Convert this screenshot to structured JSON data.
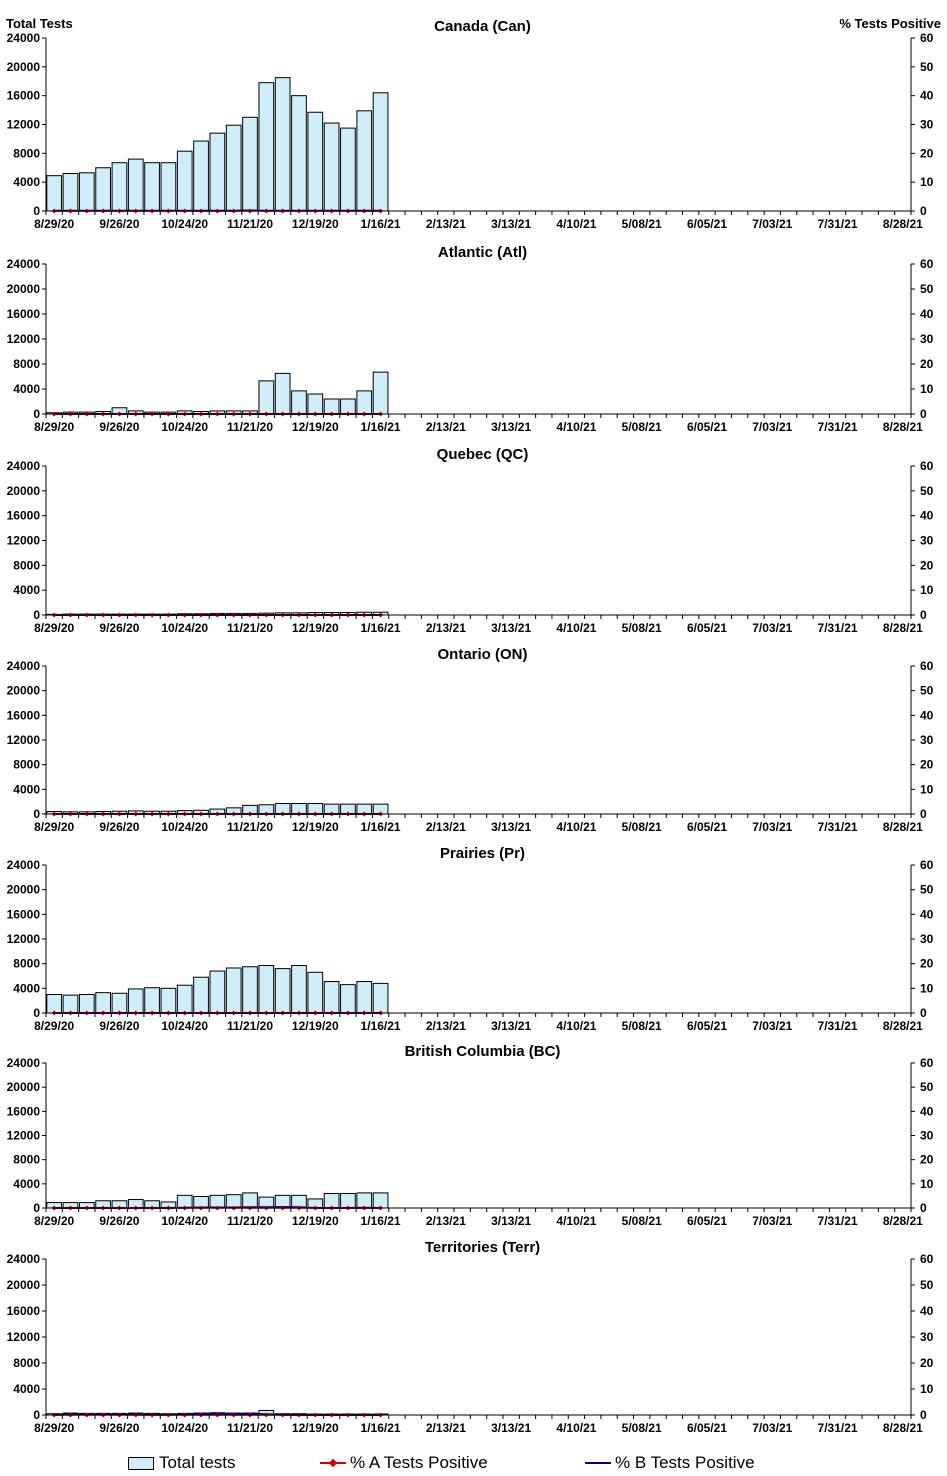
{
  "left_axis_title": "Total Tests",
  "right_axis_title": "% Tests Positive",
  "colors": {
    "bar_fill": "#cfeefa",
    "bar_stroke": "#000000",
    "pct_a": "#cc0000",
    "pct_b": "#00008b"
  },
  "legend": {
    "total": "Total tests",
    "pct_a": "% A Tests Positive",
    "pct_b": "% B Tests Positive"
  },
  "chart_data": [
    {
      "type": "bar",
      "title": "Canada (Can)",
      "ylim": [
        0,
        24000
      ],
      "y2lim": [
        0,
        60
      ],
      "yticks": [
        "24000",
        "20000",
        "16000",
        "12000",
        "8000",
        "4000",
        "0"
      ],
      "y2ticks": [
        "60",
        "50",
        "40",
        "30",
        "20",
        "10",
        "0"
      ],
      "xtick_labels": [
        "8/29/20",
        "9/26/20",
        "10/24/20",
        "11/21/20",
        "12/19/20",
        "1/16/21",
        "2/13/21",
        "3/13/21",
        "4/10/21",
        "5/08/21",
        "6/05/21",
        "7/03/21",
        "7/31/21",
        "8/28/21"
      ],
      "series": [
        {
          "name": "Total tests",
          "values": [
            4900,
            5200,
            5300,
            6000,
            6700,
            7200,
            6700,
            6700,
            8300,
            9700,
            10800,
            11900,
            13000,
            17800,
            18500,
            16000,
            13700,
            12200,
            11500,
            13900,
            16400
          ]
        },
        {
          "name": "% A Tests Positive",
          "values": [
            0,
            0,
            0,
            0,
            0,
            0,
            0,
            0,
            0,
            0,
            0,
            0,
            0,
            0,
            0,
            0,
            0,
            0,
            0,
            0,
            0
          ]
        },
        {
          "name": "% B Tests Positive",
          "values": [
            0.1,
            0.1,
            0.1,
            0.1,
            0.1,
            0.1,
            0.1,
            0.1,
            0.1,
            0.1,
            0.1,
            0.1,
            0.2,
            0.1,
            0.1,
            0.1,
            0.1,
            0.1,
            0.1,
            0.1,
            0.1
          ]
        }
      ]
    },
    {
      "type": "bar",
      "title": "Atlantic (Atl)",
      "ylim": [
        0,
        24000
      ],
      "y2lim": [
        0,
        60
      ],
      "yticks": [
        "24000",
        "20000",
        "16000",
        "12000",
        "8000",
        "4000",
        "0"
      ],
      "y2ticks": [
        "60",
        "50",
        "40",
        "30",
        "20",
        "10",
        "0"
      ],
      "xtick_labels": [
        "8/29/20",
        "9/26/20",
        "10/24/20",
        "11/21/20",
        "12/19/20",
        "1/16/21",
        "2/13/21",
        "3/13/21",
        "4/10/21",
        "5/08/21",
        "6/05/21",
        "7/03/21",
        "7/31/21",
        "8/28/21"
      ],
      "series": [
        {
          "name": "Total tests",
          "values": [
            200,
            300,
            300,
            400,
            1000,
            500,
            300,
            300,
            500,
            400,
            500,
            500,
            500,
            5300,
            6500,
            3700,
            3200,
            2400,
            2400,
            3700,
            6700
          ]
        },
        {
          "name": "% A Tests Positive",
          "values": [
            0,
            0,
            0,
            0,
            0,
            0,
            0,
            0,
            0,
            0,
            0,
            0,
            0,
            0,
            0,
            0,
            0,
            0,
            0,
            0,
            0
          ]
        },
        {
          "name": "% B Tests Positive",
          "values": [
            0,
            0,
            0,
            0,
            0,
            0,
            0,
            0,
            0,
            0,
            0,
            0,
            0,
            0,
            0,
            0,
            0,
            0,
            0,
            0,
            0
          ]
        }
      ]
    },
    {
      "type": "bar",
      "title": "Quebec (QC)",
      "ylim": [
        0,
        24000
      ],
      "y2lim": [
        0,
        60
      ],
      "yticks": [
        "24000",
        "20000",
        "16000",
        "12000",
        "8000",
        "4000",
        "0"
      ],
      "y2ticks": [
        "60",
        "50",
        "40",
        "30",
        "20",
        "10",
        "0"
      ],
      "xtick_labels": [
        "8/29/20",
        "9/26/20",
        "10/24/20",
        "11/21/20",
        "12/19/20",
        "1/16/21",
        "2/13/21",
        "3/13/21",
        "4/10/21",
        "5/08/21",
        "6/05/21",
        "7/03/21",
        "7/31/21",
        "8/28/21"
      ],
      "series": [
        {
          "name": "Total tests",
          "values": [
            100,
            150,
            150,
            150,
            150,
            150,
            150,
            150,
            200,
            200,
            250,
            250,
            250,
            300,
            350,
            350,
            400,
            400,
            400,
            450,
            450
          ]
        },
        {
          "name": "% A Tests Positive",
          "values": [
            0,
            0,
            0,
            0,
            0,
            0,
            0,
            0,
            0,
            0,
            0,
            0,
            0,
            0,
            0,
            0,
            0,
            0,
            0,
            0,
            0
          ]
        },
        {
          "name": "% B Tests Positive",
          "values": [
            0,
            0,
            0,
            0,
            0,
            0,
            0,
            0,
            0,
            0,
            0,
            0,
            0,
            0,
            0,
            0,
            0,
            0,
            0,
            0,
            0
          ]
        }
      ]
    },
    {
      "type": "bar",
      "title": "Ontario (ON)",
      "ylim": [
        0,
        24000
      ],
      "y2lim": [
        0,
        60
      ],
      "yticks": [
        "24000",
        "20000",
        "16000",
        "12000",
        "8000",
        "4000",
        "0"
      ],
      "y2ticks": [
        "60",
        "50",
        "40",
        "30",
        "20",
        "10",
        "0"
      ],
      "xtick_labels": [
        "8/29/20",
        "9/26/20",
        "10/24/20",
        "11/21/20",
        "12/19/20",
        "1/16/21",
        "2/13/21",
        "3/13/21",
        "4/10/21",
        "5/08/21",
        "6/05/21",
        "7/03/21",
        "7/31/21",
        "8/28/21"
      ],
      "series": [
        {
          "name": "Total tests",
          "values": [
            400,
            350,
            350,
            400,
            450,
            500,
            450,
            450,
            550,
            600,
            800,
            1000,
            1400,
            1500,
            1700,
            1700,
            1700,
            1600,
            1600,
            1600,
            1600
          ]
        },
        {
          "name": "% A Tests Positive",
          "values": [
            0,
            0,
            0,
            0,
            0,
            0,
            0,
            0,
            0,
            0,
            0,
            0,
            0,
            0,
            0,
            0,
            0,
            0,
            0,
            0,
            0
          ]
        },
        {
          "name": "% B Tests Positive",
          "values": [
            0,
            0,
            0,
            0,
            0,
            0,
            0,
            0,
            0,
            0,
            0,
            0,
            0,
            0,
            0,
            0,
            0,
            0,
            0,
            0,
            0
          ]
        }
      ]
    },
    {
      "type": "bar",
      "title": "Prairies (Pr)",
      "ylim": [
        0,
        24000
      ],
      "y2lim": [
        0,
        60
      ],
      "yticks": [
        "24000",
        "20000",
        "16000",
        "12000",
        "8000",
        "4000",
        "0"
      ],
      "y2ticks": [
        "60",
        "50",
        "40",
        "30",
        "20",
        "10",
        "0"
      ],
      "xtick_labels": [
        "8/29/20",
        "9/26/20",
        "10/24/20",
        "11/21/20",
        "12/19/20",
        "1/16/21",
        "2/13/21",
        "3/13/21",
        "4/10/21",
        "5/08/21",
        "6/05/21",
        "7/03/21",
        "7/31/21",
        "8/28/21"
      ],
      "series": [
        {
          "name": "Total tests",
          "values": [
            3000,
            2900,
            3000,
            3300,
            3200,
            3900,
            4100,
            4000,
            4500,
            5800,
            6800,
            7300,
            7500,
            7700,
            7200,
            7700,
            6600,
            5100,
            4600,
            5100,
            4800
          ]
        },
        {
          "name": "% A Tests Positive",
          "values": [
            0,
            0,
            0,
            0,
            0,
            0,
            0,
            0,
            0,
            0,
            0,
            0,
            0,
            0,
            0,
            0,
            0,
            0,
            0,
            0,
            0
          ]
        },
        {
          "name": "% B Tests Positive",
          "values": [
            0,
            0,
            0,
            0,
            0,
            0,
            0,
            0,
            0,
            0,
            0,
            0,
            0,
            0,
            0,
            0,
            0,
            0,
            0,
            0,
            0
          ]
        }
      ]
    },
    {
      "type": "bar",
      "title": "British Columbia (BC)",
      "ylim": [
        0,
        24000
      ],
      "y2lim": [
        0,
        60
      ],
      "yticks": [
        "24000",
        "20000",
        "16000",
        "12000",
        "8000",
        "4000",
        "0"
      ],
      "y2ticks": [
        "60",
        "50",
        "40",
        "30",
        "20",
        "10",
        "0"
      ],
      "xtick_labels": [
        "8/29/20",
        "9/26/20",
        "10/24/20",
        "11/21/20",
        "12/19/20",
        "1/16/21",
        "2/13/21",
        "3/13/21",
        "4/10/21",
        "5/08/21",
        "6/05/21",
        "7/03/21",
        "7/31/21",
        "8/28/21"
      ],
      "series": [
        {
          "name": "Total tests",
          "values": [
            900,
            900,
            900,
            1200,
            1200,
            1400,
            1200,
            1000,
            2100,
            1900,
            2100,
            2200,
            2500,
            1800,
            2100,
            2100,
            1500,
            2400,
            2400,
            2500,
            2500
          ]
        },
        {
          "name": "% A Tests Positive",
          "values": [
            0,
            0,
            0,
            0,
            0,
            0,
            0,
            0,
            0,
            0,
            0,
            0,
            0,
            0,
            0,
            0,
            0,
            0,
            0,
            0,
            0
          ]
        },
        {
          "name": "% B Tests Positive",
          "values": [
            0,
            0,
            0,
            0,
            0,
            0,
            0,
            0,
            0.1,
            0.2,
            0.2,
            0.2,
            0.3,
            0.3,
            0.4,
            0.3,
            0,
            0,
            0,
            0.1,
            0
          ]
        }
      ]
    },
    {
      "type": "bar",
      "title": "Territories (Terr)",
      "ylim": [
        0,
        24000
      ],
      "y2lim": [
        0,
        60
      ],
      "yticks": [
        "24000",
        "20000",
        "16000",
        "12000",
        "8000",
        "4000",
        "0"
      ],
      "y2ticks": [
        "60",
        "50",
        "40",
        "30",
        "20",
        "10",
        "0"
      ],
      "xtick_labels": [
        "8/29/20",
        "9/26/20",
        "10/24/20",
        "11/21/20",
        "12/19/20",
        "1/16/21",
        "2/13/21",
        "3/13/21",
        "4/10/21",
        "5/08/21",
        "6/05/21",
        "7/03/21",
        "7/31/21",
        "8/28/21"
      ],
      "series": [
        {
          "name": "Total tests",
          "values": [
            200,
            300,
            250,
            250,
            250,
            300,
            250,
            200,
            250,
            300,
            350,
            300,
            300,
            700,
            200,
            200,
            150,
            150,
            150,
            150,
            150
          ]
        },
        {
          "name": "% A Tests Positive",
          "values": [
            0,
            0,
            0,
            0,
            0,
            0,
            0,
            0,
            0,
            0,
            0,
            0,
            0,
            0,
            0,
            0,
            0,
            0,
            0,
            0,
            0
          ]
        },
        {
          "name": "% B Tests Positive",
          "values": [
            0,
            0.3,
            0.2,
            0.2,
            0.2,
            0.2,
            0.1,
            0.1,
            0.2,
            0.5,
            0.6,
            0.3,
            0.5,
            0.3,
            0.1,
            0,
            0,
            0,
            0,
            0,
            0
          ]
        }
      ]
    }
  ]
}
